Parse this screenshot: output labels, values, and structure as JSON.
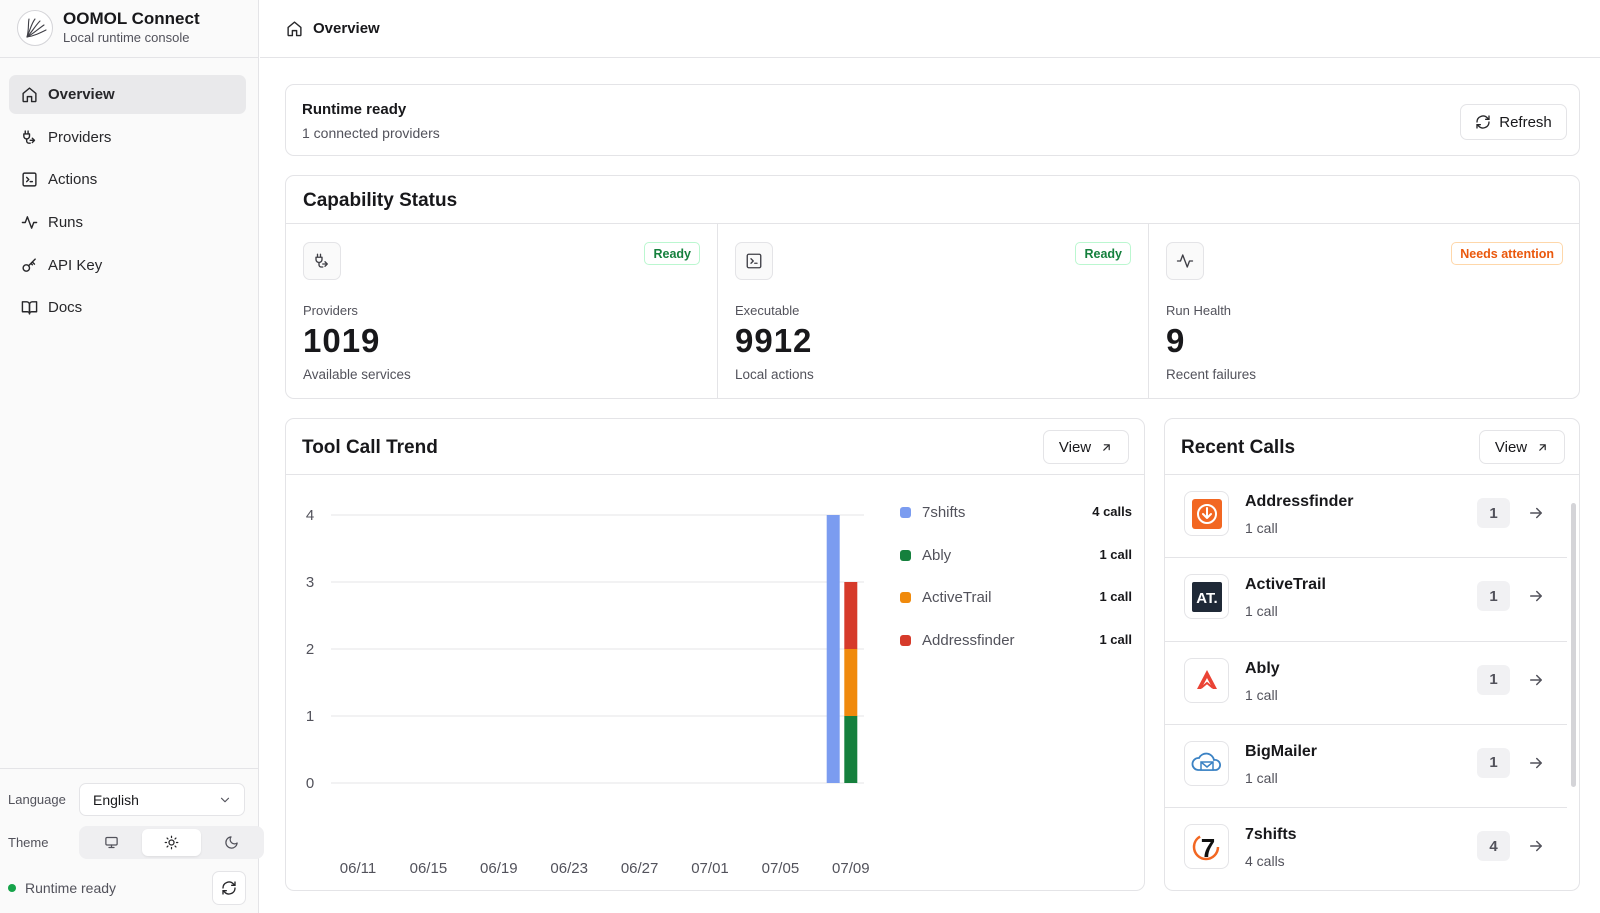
{
  "app": {
    "name": "OOMOL Connect",
    "subtitle": "Local runtime console"
  },
  "sidebar": {
    "items": [
      {
        "label": "Overview",
        "icon": "home-icon",
        "active": true
      },
      {
        "label": "Providers",
        "icon": "plug-icon"
      },
      {
        "label": "Actions",
        "icon": "terminal-icon"
      },
      {
        "label": "Runs",
        "icon": "activity-icon"
      },
      {
        "label": "API Key",
        "icon": "key-icon"
      },
      {
        "label": "Docs",
        "icon": "book-icon"
      }
    ],
    "language_label": "Language",
    "language_value": "English",
    "theme_label": "Theme",
    "theme_options": [
      "system",
      "light",
      "dark"
    ],
    "theme_selected": "light",
    "status_text": "Runtime ready",
    "status_color": "#16a34a"
  },
  "header": {
    "title": "Overview"
  },
  "runtime": {
    "title": "Runtime ready",
    "subtitle": "1 connected providers",
    "refresh_label": "Refresh"
  },
  "capability": {
    "title": "Capability Status",
    "cells": [
      {
        "icon": "plug-icon",
        "badge": "Ready",
        "label": "Providers",
        "value": "1019",
        "desc": "Available services"
      },
      {
        "icon": "terminal-icon",
        "badge": "Ready",
        "label": "Executable",
        "value": "9912",
        "desc": "Local actions"
      },
      {
        "icon": "activity-icon",
        "badge": "Needs attention",
        "label": "Run Health",
        "value": "9",
        "desc": "Recent failures"
      }
    ]
  },
  "trend": {
    "title": "Tool Call Trend",
    "view_label": "View",
    "legend": [
      {
        "name": "7shifts",
        "value": "4 calls",
        "color": "#7b9cf0"
      },
      {
        "name": "Ably",
        "value": "1 call",
        "color": "#15803d"
      },
      {
        "name": "ActiveTrail",
        "value": "1 call",
        "color": "#f08a0c"
      },
      {
        "name": "Addressfinder",
        "value": "1 call",
        "color": "#d63a2a"
      }
    ]
  },
  "chart_data": {
    "type": "bar",
    "stacked": true,
    "x_tick_labels": [
      "06/11",
      "06/15",
      "06/19",
      "06/23",
      "06/27",
      "07/01",
      "07/05",
      "07/09"
    ],
    "ylim": [
      0,
      4
    ],
    "y_ticks": [
      0,
      1,
      2,
      3,
      4
    ],
    "grid": true,
    "legend_position": "right",
    "bars": [
      {
        "date": "07/08",
        "series": "7shifts",
        "value": 4,
        "base": 0
      },
      {
        "date": "07/09",
        "series": "Ably",
        "value": 1,
        "base": 0
      },
      {
        "date": "07/09",
        "series": "ActiveTrail",
        "value": 1,
        "base": 1
      },
      {
        "date": "07/09",
        "series": "Addressfinder",
        "value": 1,
        "base": 2
      }
    ],
    "series": [
      {
        "name": "7shifts",
        "color": "#7b9cf0"
      },
      {
        "name": "Ably",
        "color": "#15803d"
      },
      {
        "name": "ActiveTrail",
        "color": "#f08a0c"
      },
      {
        "name": "Addressfinder",
        "color": "#d63a2a"
      }
    ]
  },
  "recent": {
    "title": "Recent Calls",
    "view_label": "View",
    "items": [
      {
        "name": "Addressfinder",
        "calls": "1 call",
        "count": "1",
        "logo": "addressfinder-logo"
      },
      {
        "name": "ActiveTrail",
        "calls": "1 call",
        "count": "1",
        "logo": "activetrail-logo"
      },
      {
        "name": "Ably",
        "calls": "1 call",
        "count": "1",
        "logo": "ably-logo"
      },
      {
        "name": "BigMailer",
        "calls": "1 call",
        "count": "1",
        "logo": "bigmailer-logo"
      },
      {
        "name": "7shifts",
        "calls": "4 calls",
        "count": "4",
        "logo": "7shifts-logo"
      }
    ]
  }
}
